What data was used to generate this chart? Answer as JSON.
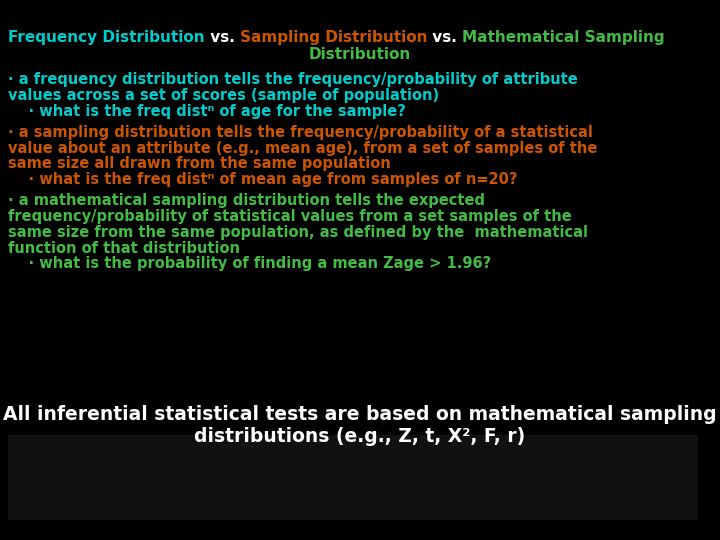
{
  "bg_color": "#000000",
  "title_line1_parts": [
    {
      "text": "Frequency Distribution",
      "color": "#00cccc"
    },
    {
      "text": " vs. ",
      "color": "#ffffff"
    },
    {
      "text": "Sampling Distribution",
      "color": "#cc5500"
    },
    {
      "text": " vs. ",
      "color": "#ffffff"
    },
    {
      "text": "Mathematical Sampling",
      "color": "#44bb44"
    }
  ],
  "title_line2": {
    "text": "Distribution",
    "color": "#44bb44"
  },
  "sections": [
    {
      "color": "#00cccc",
      "lines": [
        "· a frequency distribution tells the frequency/probability of attribute",
        "values across a set of scores (sample of population)"
      ],
      "sub": "    · what is the freq distⁿ of age for the sample?"
    },
    {
      "color": "#cc5500",
      "lines": [
        "· a sampling distribution tells the frequency/probability of a statistical",
        "value about an attribute (e.g., mean age), from a set of samples of the",
        "same size all drawn from the same population"
      ],
      "sub": "    · what is the freq distⁿ of mean age from samples of n=20?"
    },
    {
      "color": "#44bb44",
      "lines": [
        "· a mathematical sampling distribution tells the expected",
        "frequency/probability of statistical values from a set samples of the",
        "same size from the same population, as defined by the  mathematical",
        "function of that distribution"
      ],
      "sub": "    · what is the probability of finding a mean Zage > 1.96?"
    }
  ],
  "footer_line1": "All inferential statistical tests are based on mathematical sampling",
  "footer_line2": "distributions (e.g., Z, t, X², F, r)",
  "footer_color": "#ffffff",
  "title_fontsize": 11.0,
  "body_fontsize": 10.5,
  "footer_fontsize": 13.5
}
